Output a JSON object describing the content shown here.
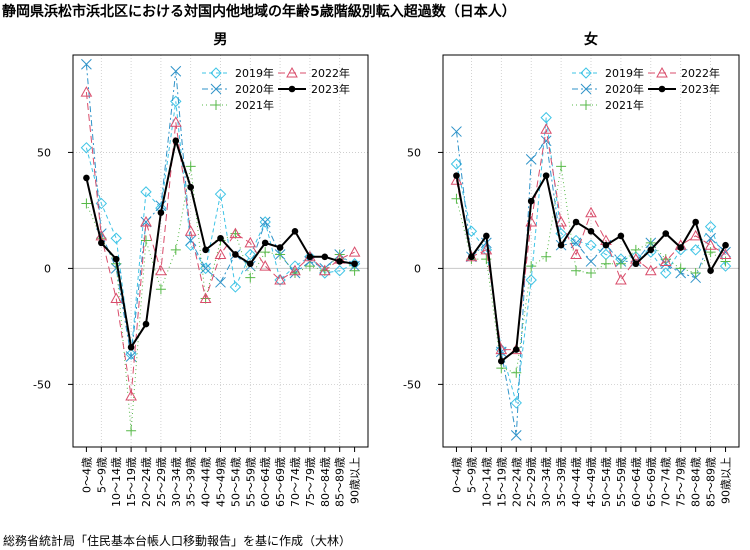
{
  "title": "静岡県浜松市浜北区における対国内他地域の年齢5歳階級別転入超過数（日本人）",
  "source": "総務省統計局「住民基本台帳人口移動報告」を基に作成（大林）",
  "chart_data": [
    {
      "type": "line",
      "title": "男",
      "xlabel": "",
      "ylabel": "",
      "ylim": [
        -77,
        92
      ],
      "yticks": [
        -50,
        0,
        50
      ],
      "grid": true,
      "legend_position": "top-right",
      "categories": [
        "0～4歳",
        "5～9歳",
        "10～14歳",
        "15～19歳",
        "20～24歳",
        "25～29歳",
        "30～34歳",
        "35～39歳",
        "40～44歳",
        "45～49歳",
        "50～54歳",
        "55～59歳",
        "60～64歳",
        "65～69歳",
        "70～74歳",
        "75～79歳",
        "80～84歳",
        "85～89歳",
        "90歳以上"
      ],
      "series": [
        {
          "name": "2019年",
          "values": [
            52,
            28,
            13,
            -37,
            33,
            26,
            72,
            10,
            0,
            32,
            -8,
            6,
            20,
            -5,
            1,
            5,
            -2,
            -1,
            2
          ]
        },
        {
          "name": "2020年",
          "values": [
            88,
            15,
            0,
            -38,
            20,
            27,
            85,
            12,
            0,
            -6,
            6,
            1,
            20,
            6,
            -2,
            3,
            0,
            6,
            1
          ]
        },
        {
          "name": "2021年",
          "values": [
            28,
            13,
            2,
            -70,
            12,
            -9,
            8,
            44,
            -13,
            12,
            15,
            -4,
            7,
            6,
            -2,
            1,
            -1,
            6,
            -1
          ]
        },
        {
          "name": "2022年",
          "values": [
            76,
            14,
            -13,
            -55,
            20,
            -1,
            63,
            16,
            -13,
            6,
            15,
            11,
            1,
            -5,
            -1,
            5,
            -1,
            4,
            7
          ]
        },
        {
          "name": "2023年",
          "values": [
            39,
            11,
            4,
            -34,
            -24,
            24,
            55,
            35,
            8,
            13,
            6,
            2,
            11,
            9,
            16,
            5,
            5,
            3,
            2
          ]
        }
      ]
    },
    {
      "type": "line",
      "title": "女",
      "xlabel": "",
      "ylabel": "",
      "ylim": [
        -77,
        92
      ],
      "yticks": [
        -50,
        0,
        50
      ],
      "grid": true,
      "legend_position": "top-right",
      "categories": [
        "0～4歳",
        "5～9歳",
        "10～14歳",
        "15～19歳",
        "20～24歳",
        "25～29歳",
        "30～34歳",
        "35～39歳",
        "40～44歳",
        "45～49歳",
        "50～54歳",
        "55～59歳",
        "60～64歳",
        "65～69歳",
        "70～74歳",
        "75～79歳",
        "80～84歳",
        "85～89歳",
        "90歳以上"
      ],
      "series": [
        {
          "name": "2019年",
          "values": [
            45,
            16,
            8,
            -35,
            -58,
            -5,
            65,
            15,
            12,
            10,
            6,
            4,
            5,
            7,
            -2,
            8,
            8,
            18,
            1
          ]
        },
        {
          "name": "2020年",
          "values": [
            59,
            5,
            11,
            -36,
            -72,
            47,
            55,
            10,
            11,
            3,
            10,
            3,
            3,
            11,
            2,
            -2,
            -4,
            13,
            7
          ]
        },
        {
          "name": "2021年",
          "values": [
            30,
            4,
            4,
            -43,
            -45,
            1,
            5,
            44,
            -1,
            -2,
            2,
            2,
            8,
            11,
            4,
            0,
            -2,
            7,
            3
          ]
        },
        {
          "name": "2022年",
          "values": [
            38,
            5,
            8,
            -35,
            -35,
            20,
            60,
            20,
            6,
            24,
            12,
            -5,
            4,
            -1,
            3,
            10,
            14,
            10,
            6
          ]
        },
        {
          "name": "2023年",
          "values": [
            40,
            5,
            14,
            -40,
            -35,
            29,
            40,
            10,
            20,
            16,
            10,
            14,
            2,
            8,
            15,
            9,
            20,
            -1,
            10
          ]
        }
      ]
    }
  ]
}
